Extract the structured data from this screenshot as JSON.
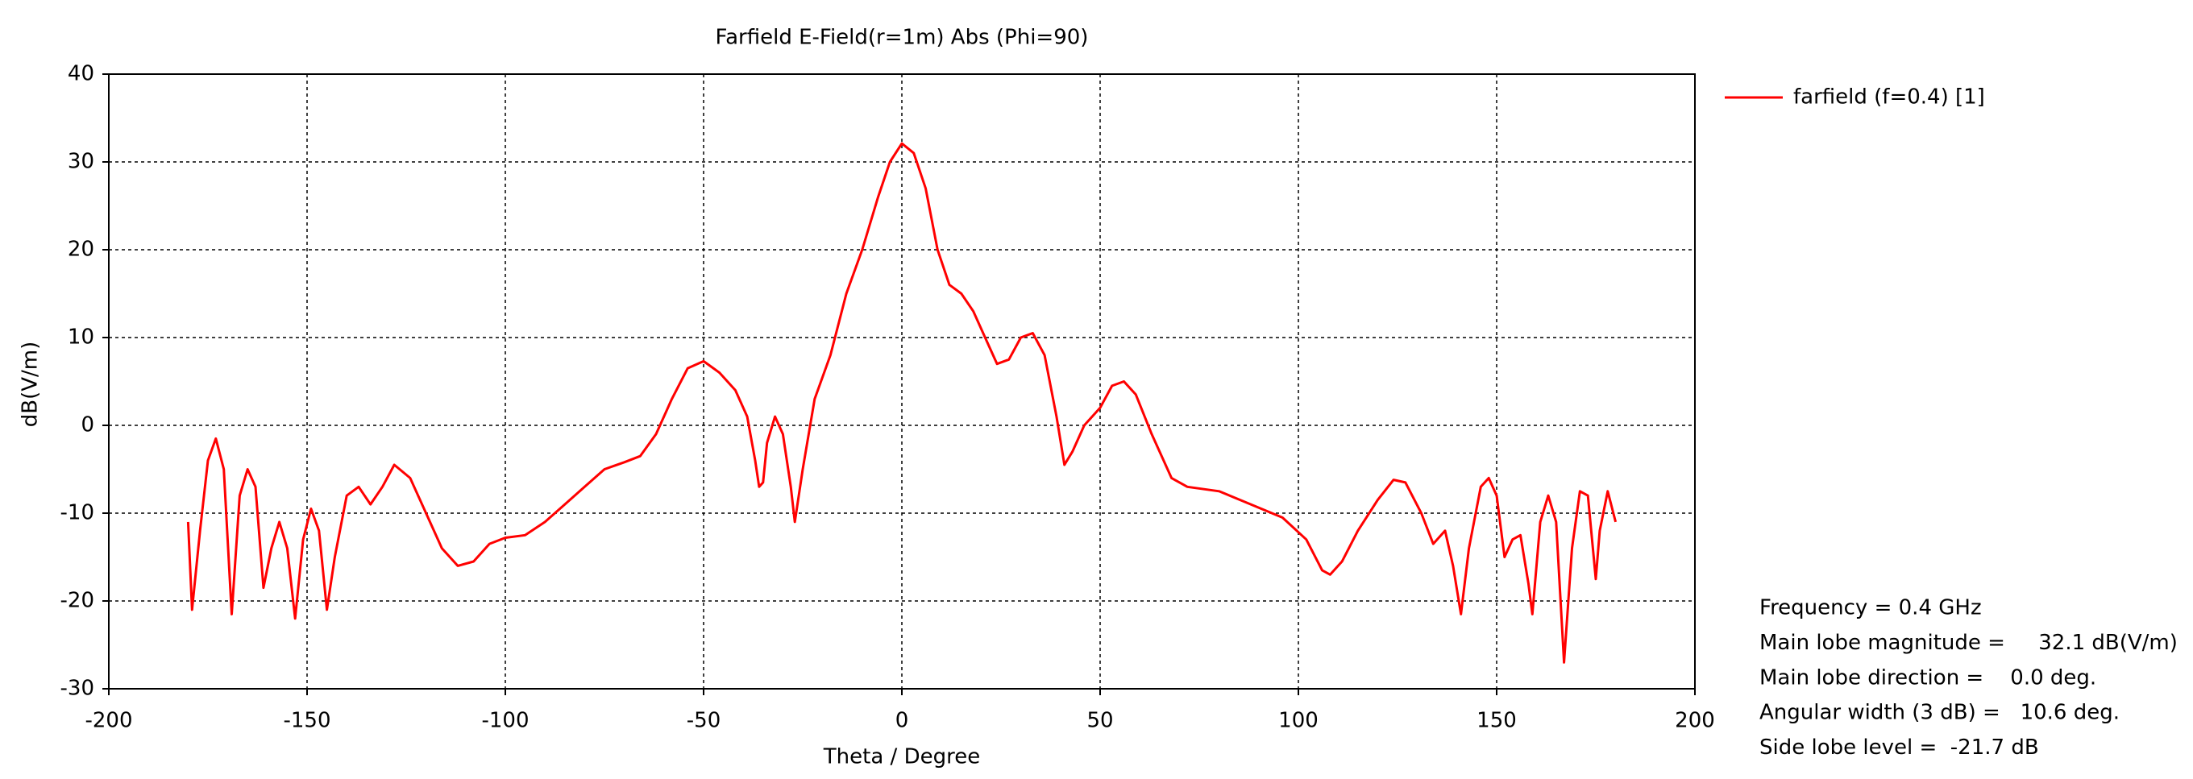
{
  "chart_data": {
    "type": "line",
    "title": "Farfield E-Field(r=1m) Abs (Phi=90)",
    "x_label": "Theta / Degree",
    "y_label": "dB(V/m)",
    "xlim": [
      -200,
      200
    ],
    "xticks": [
      -200,
      -150,
      -100,
      -50,
      0,
      50,
      100,
      150,
      200
    ],
    "ylim": [
      -30,
      40
    ],
    "yticks": [
      -30,
      -20,
      -10,
      0,
      10,
      20,
      30,
      40
    ],
    "grid": true,
    "x": [
      -180,
      -179,
      -177,
      -175,
      -173,
      -171,
      -169,
      -167,
      -165,
      -163,
      -161,
      -159,
      -157,
      -155,
      -153,
      -151,
      -149,
      -147,
      -145,
      -143,
      -140,
      -137,
      -134,
      -131,
      -128,
      -124,
      -120,
      -116,
      -112,
      -108,
      -104,
      -100,
      -95,
      -90,
      -85,
      -80,
      -75,
      -70,
      -66,
      -62,
      -58,
      -54,
      -50,
      -46,
      -42,
      -39,
      -37,
      -36,
      -35,
      -34,
      -32,
      -30,
      -28,
      -27,
      -25,
      -22,
      -18,
      -14,
      -10,
      -6,
      -3,
      0,
      3,
      6,
      9,
      12,
      15,
      18,
      21,
      24,
      27,
      30,
      33,
      36,
      39,
      41,
      43,
      46,
      50,
      53,
      56,
      59,
      63,
      68,
      72,
      80,
      88,
      96,
      102,
      106,
      108,
      111,
      115,
      120,
      124,
      127,
      131,
      134,
      137,
      139,
      141,
      143,
      146,
      148,
      150,
      152,
      154,
      156,
      158,
      159,
      161,
      163,
      165,
      167,
      169,
      171,
      173,
      175,
      176,
      178,
      180
    ],
    "series": [
      {
        "name": "farfield (f=0.4) [1]",
        "color": "#ff0000",
        "values": [
          -11,
          -21,
          -12,
          -4,
          -1.5,
          -5,
          -21.5,
          -8,
          -5,
          -7,
          -18.5,
          -14,
          -11,
          -14,
          -22,
          -13,
          -9.5,
          -12,
          -21,
          -15,
          -8,
          -7,
          -9,
          -7,
          -4.5,
          -6,
          -10,
          -14,
          -16,
          -15.5,
          -13.5,
          -12.8,
          -12.5,
          -11,
          -9,
          -7,
          -5,
          -4.2,
          -3.5,
          -1,
          3,
          6.5,
          7.3,
          6,
          4,
          1,
          -4,
          -7,
          -6.5,
          -2,
          1,
          -1,
          -7,
          -11,
          -5,
          3,
          8,
          15,
          20,
          26,
          30,
          32.1,
          31,
          27,
          20,
          16,
          15,
          13,
          10,
          7,
          7.5,
          10,
          10.5,
          8,
          1,
          -4.5,
          -3,
          0,
          2,
          4.5,
          5,
          3.5,
          -1,
          -6,
          -7,
          -7.5,
          -9,
          -10.5,
          -13,
          -16.5,
          -17,
          -15.5,
          -12,
          -8.5,
          -6.2,
          -6.5,
          -10,
          -13.5,
          -12,
          -16,
          -21.5,
          -14,
          -7,
          -6,
          -8,
          -15,
          -13,
          -12.5,
          -18,
          -21.5,
          -11,
          -8,
          -11,
          -27,
          -14,
          -7.5,
          -8,
          -17.5,
          -12,
          -7.5,
          -11
        ]
      }
    ],
    "annotations": [
      "Frequency = 0.4 GHz",
      "Main lobe magnitude =     32.1 dB(V/m)",
      "Main lobe direction =    0.0 deg.",
      "Angular width (3 dB) =   10.6 deg.",
      "Side lobe level =  -21.7 dB"
    ]
  }
}
